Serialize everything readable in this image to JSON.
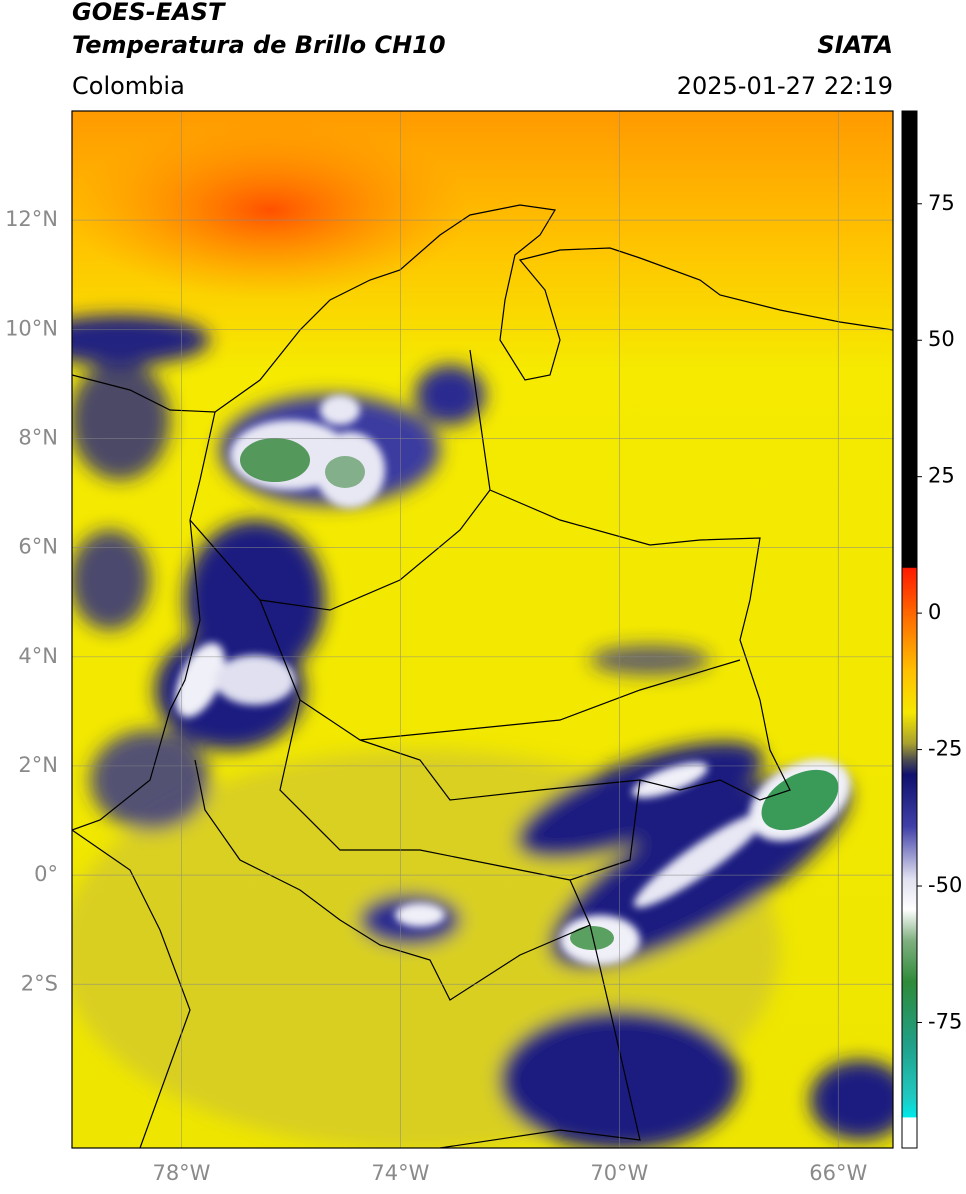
{
  "header": {
    "title": "GOES-EAST",
    "subtitle": "Temperatura de Brillo CH10",
    "source": "SIATA",
    "region": "Colombia",
    "datetime": "2025-01-27 22:19"
  },
  "map": {
    "lonlim": [
      -80,
      -65
    ],
    "latlim": [
      -5,
      14
    ],
    "grid": true,
    "lonticks": [
      {
        "value": -78,
        "label": "78°W"
      },
      {
        "value": -74,
        "label": "74°W"
      },
      {
        "value": -70,
        "label": "70°W"
      },
      {
        "value": -66,
        "label": "66°W"
      }
    ],
    "latticks": [
      {
        "value": 12,
        "label": "12°N"
      },
      {
        "value": 10,
        "label": "10°N"
      },
      {
        "value": 8,
        "label": "8°N"
      },
      {
        "value": 6,
        "label": "6°N"
      },
      {
        "value": 4,
        "label": "4°N"
      },
      {
        "value": 2,
        "label": "2°N"
      },
      {
        "value": 0,
        "label": "0°"
      },
      {
        "value": -2,
        "label": "2°S"
      }
    ]
  },
  "colorbar": {
    "lim": [
      -98,
      92
    ],
    "ticks": [
      75,
      50,
      25,
      0,
      -25,
      -50,
      -75
    ]
  }
}
